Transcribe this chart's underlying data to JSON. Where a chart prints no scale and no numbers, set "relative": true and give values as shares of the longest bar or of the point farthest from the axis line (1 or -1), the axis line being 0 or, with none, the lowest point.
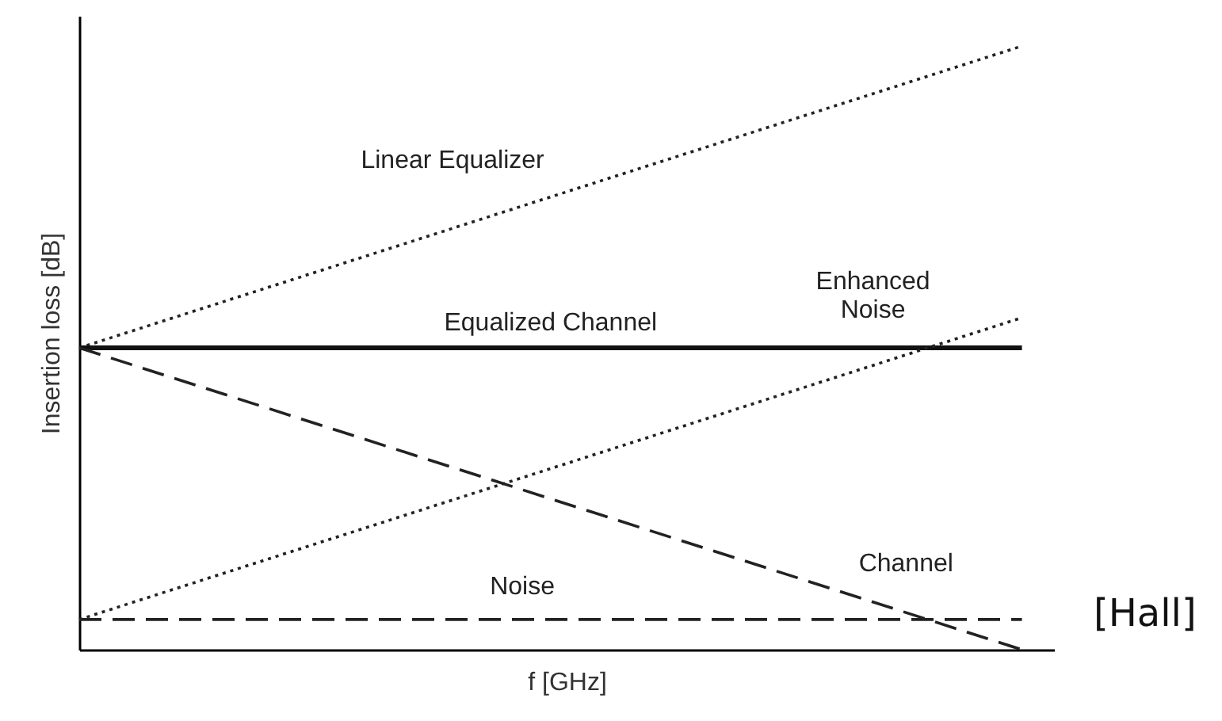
{
  "chart_data": {
    "type": "line",
    "relative": true,
    "xlabel": "f [GHz]",
    "ylabel": "Insertion loss [dB]",
    "categories": [
      null,
      null
    ],
    "series": [
      {
        "name": "Linear Equalizer",
        "color": "#222222",
        "values": [
          0.5,
          1.0
        ],
        "line_style": "dotted"
      },
      {
        "name": "Equalized Channel",
        "color": "#111111",
        "values": [
          0.5,
          0.5
        ],
        "line_style": "solid"
      },
      {
        "name": "Enhanced Noise",
        "color": "#222222",
        "values": [
          0.05,
          0.55
        ],
        "line_style": "dotted"
      },
      {
        "name": "Channel",
        "color": "#222222",
        "values": [
          0.5,
          0
        ],
        "line_style": "dashed"
      },
      {
        "name": "Noise",
        "color": "#222222",
        "values": [
          0.05,
          0.05
        ],
        "line_style": "dashed"
      }
    ],
    "annotations": [
      "[Hall]"
    ]
  }
}
